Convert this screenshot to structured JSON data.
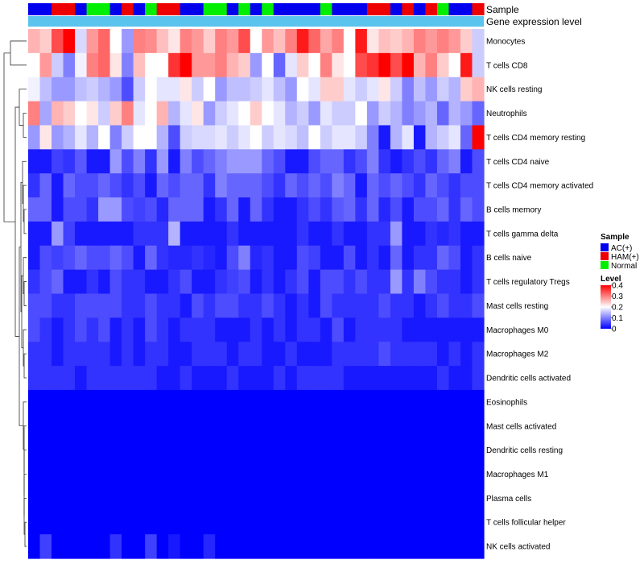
{
  "chart_data": {
    "type": "heatmap",
    "title": "",
    "annotation_tracks": [
      "Sample",
      "Gene expression level"
    ],
    "gene_expression_color": "#5bc4ee",
    "sample_groups": {
      "AC(+)": "#0000ee",
      "HAM(+)": "#ee0000",
      "Normal": "#00ee00"
    },
    "sample_annotation": [
      "AC(+)",
      "AC(+)",
      "HAM(+)",
      "HAM(+)",
      "AC(+)",
      "Normal",
      "Normal",
      "AC(+)",
      "HAM(+)",
      "AC(+)",
      "Normal",
      "HAM(+)",
      "HAM(+)",
      "AC(+)",
      "AC(+)",
      "Normal",
      "Normal",
      "AC(+)",
      "Normal",
      "AC(+)",
      "Normal",
      "AC(+)",
      "AC(+)",
      "AC(+)",
      "AC(+)",
      "Normal",
      "AC(+)",
      "AC(+)",
      "AC(+)",
      "HAM(+)",
      "HAM(+)",
      "AC(+)",
      "HAM(+)",
      "AC(+)",
      "HAM(+)",
      "Normal",
      "AC(+)",
      "AC(+)",
      "HAM(+)"
    ],
    "row_labels": [
      "Monocytes",
      "T cells CD8",
      "NK cells resting",
      "Neutrophils",
      "T cells CD4 memory resting",
      "T cells CD4 naive",
      "T cells CD4 memory activated",
      "B cells memory",
      "T cells gamma delta",
      "B cells naive",
      "T cells regulatory  Tregs",
      "Mast cells resting",
      "Macrophages M0",
      "Macrophages M2",
      "Dendritic cells activated",
      "Eosinophils",
      "Mast cells activated",
      "Dendritic cells resting",
      "Macrophages M1",
      "Plasma cells",
      "T cells follicular helper",
      "NK cells activated"
    ],
    "values": [
      [
        0.26,
        0.24,
        0.34,
        0.4,
        0.17,
        0.28,
        0.32,
        0.2,
        0.12,
        0.3,
        0.29,
        0.25,
        0.22,
        0.3,
        0.28,
        0.24,
        0.3,
        0.28,
        0.34,
        0.2,
        0.28,
        0.25,
        0.3,
        0.38,
        0.32,
        0.27,
        0.3,
        0.2,
        0.38,
        0.22,
        0.25,
        0.24,
        0.26,
        0.3,
        0.28,
        0.3,
        0.28,
        0.24,
        0.16
      ],
      [
        0.2,
        0.28,
        0.16,
        0.1,
        0.19,
        0.3,
        0.32,
        0.22,
        0.1,
        0.25,
        0.2,
        0.2,
        0.36,
        0.4,
        0.28,
        0.28,
        0.3,
        0.26,
        0.24,
        0.12,
        0.2,
        0.08,
        0.18,
        0.24,
        0.2,
        0.3,
        0.22,
        0.2,
        0.34,
        0.36,
        0.4,
        0.34,
        0.4,
        0.26,
        0.3,
        0.24,
        0.2,
        0.38,
        0.16
      ],
      [
        0.19,
        0.15,
        0.12,
        0.12,
        0.15,
        0.16,
        0.14,
        0.12,
        0.06,
        0.16,
        0.2,
        0.18,
        0.18,
        0.22,
        0.16,
        0.2,
        0.12,
        0.15,
        0.15,
        0.16,
        0.18,
        0.15,
        0.12,
        0.2,
        0.18,
        0.24,
        0.24,
        0.18,
        0.16,
        0.18,
        0.22,
        0.16,
        0.1,
        0.15,
        0.12,
        0.16,
        0.14,
        0.24,
        0.26
      ],
      [
        0.3,
        0.13,
        0.26,
        0.24,
        0.2,
        0.22,
        0.16,
        0.24,
        0.3,
        0.18,
        0.2,
        0.26,
        0.14,
        0.18,
        0.22,
        0.12,
        0.16,
        0.18,
        0.2,
        0.24,
        0.2,
        0.18,
        0.14,
        0.16,
        0.12,
        0.18,
        0.16,
        0.16,
        0.2,
        0.12,
        0.16,
        0.14,
        0.1,
        0.12,
        0.14,
        0.08,
        0.14,
        0.12,
        0.08
      ],
      [
        0.12,
        0.22,
        0.12,
        0.14,
        0.18,
        0.14,
        0.2,
        0.1,
        0.16,
        0.2,
        0.2,
        0.14,
        0.06,
        0.16,
        0.17,
        0.17,
        0.18,
        0.16,
        0.18,
        0.2,
        0.16,
        0.18,
        0.17,
        0.15,
        0.2,
        0.16,
        0.18,
        0.18,
        0.16,
        0.1,
        0.02,
        0.14,
        0.18,
        0.02,
        0.14,
        0.16,
        0.18,
        0.08,
        0.4
      ],
      [
        0.02,
        0.02,
        0.05,
        0.04,
        0.07,
        0.02,
        0.02,
        0.12,
        0.06,
        0.1,
        0.04,
        0.12,
        0.02,
        0.1,
        0.06,
        0.08,
        0.1,
        0.12,
        0.12,
        0.12,
        0.08,
        0.06,
        0.02,
        0.02,
        0.06,
        0.08,
        0.08,
        0.04,
        0.06,
        0.1,
        0.04,
        0.02,
        0.04,
        0.06,
        0.04,
        0.08,
        0.1,
        0.02,
        0.06
      ],
      [
        0.04,
        0.08,
        0.02,
        0.08,
        0.06,
        0.06,
        0.08,
        0.06,
        0.04,
        0.06,
        0.02,
        0.08,
        0.06,
        0.08,
        0.08,
        0.04,
        0.1,
        0.08,
        0.08,
        0.08,
        0.06,
        0.04,
        0.08,
        0.06,
        0.08,
        0.06,
        0.1,
        0.08,
        0.02,
        0.08,
        0.06,
        0.08,
        0.06,
        0.04,
        0.08,
        0.06,
        0.04,
        0.06,
        0.06
      ],
      [
        0.08,
        0.08,
        0.02,
        0.06,
        0.06,
        0.04,
        0.12,
        0.12,
        0.06,
        0.05,
        0.06,
        0.03,
        0.08,
        0.08,
        0.08,
        0.02,
        0.04,
        0.08,
        0.02,
        0.08,
        0.04,
        0.02,
        0.02,
        0.04,
        0.06,
        0.04,
        0.07,
        0.08,
        0.04,
        0.08,
        0.03,
        0.06,
        0.02,
        0.06,
        0.06,
        0.08,
        0.04,
        0.08,
        0.06
      ],
      [
        0.02,
        0.02,
        0.12,
        0.05,
        0.02,
        0.02,
        0.02,
        0.02,
        0.02,
        0.04,
        0.04,
        0.04,
        0.14,
        0.02,
        0.02,
        0.02,
        0.02,
        0.04,
        0.02,
        0.02,
        0.02,
        0.02,
        0.02,
        0.04,
        0.02,
        0.02,
        0.04,
        0.02,
        0.02,
        0.04,
        0.04,
        0.12,
        0.02,
        0.02,
        0.04,
        0.03,
        0.04,
        0.02,
        0.02
      ],
      [
        0.02,
        0.06,
        0.05,
        0.06,
        0.08,
        0.06,
        0.06,
        0.08,
        0.06,
        0.02,
        0.08,
        0.04,
        0.03,
        0.03,
        0.04,
        0.03,
        0.02,
        0.06,
        0.1,
        0.03,
        0.04,
        0.02,
        0.02,
        0.06,
        0.05,
        0.02,
        0.02,
        0.06,
        0.02,
        0.04,
        0.02,
        0.08,
        0.02,
        0.04,
        0.04,
        0.08,
        0.06,
        0.02,
        0.04
      ],
      [
        0.04,
        0.06,
        0.08,
        0.02,
        0.02,
        0.04,
        0.02,
        0.06,
        0.04,
        0.04,
        0.02,
        0.02,
        0.04,
        0.06,
        0.02,
        0.02,
        0.04,
        0.05,
        0.06,
        0.02,
        0.04,
        0.02,
        0.04,
        0.06,
        0.02,
        0.06,
        0.06,
        0.04,
        0.06,
        0.04,
        0.04,
        0.12,
        0.04,
        0.1,
        0.06,
        0.04,
        0.04,
        0.02,
        0.04
      ],
      [
        0.06,
        0.06,
        0.04,
        0.04,
        0.06,
        0.06,
        0.06,
        0.06,
        0.04,
        0.04,
        0.06,
        0.04,
        0.04,
        0.02,
        0.06,
        0.04,
        0.06,
        0.06,
        0.04,
        0.04,
        0.06,
        0.04,
        0.02,
        0.04,
        0.02,
        0.06,
        0.04,
        0.04,
        0.04,
        0.04,
        0.06,
        0.04,
        0.04,
        0.02,
        0.04,
        0.06,
        0.04,
        0.04,
        0.06
      ],
      [
        0.06,
        0.04,
        0.02,
        0.04,
        0.06,
        0.04,
        0.06,
        0.02,
        0.04,
        0.02,
        0.06,
        0.04,
        0.02,
        0.04,
        0.04,
        0.04,
        0.02,
        0.02,
        0.02,
        0.04,
        0.02,
        0.04,
        0.02,
        0.04,
        0.04,
        0.02,
        0.06,
        0.02,
        0.04,
        0.04,
        0.04,
        0.04,
        0.02,
        0.02,
        0.02,
        0.02,
        0.02,
        0.02,
        0.02
      ],
      [
        0.04,
        0.04,
        0.02,
        0.04,
        0.04,
        0.04,
        0.04,
        0.02,
        0.04,
        0.02,
        0.04,
        0.04,
        0.02,
        0.02,
        0.04,
        0.04,
        0.04,
        0.02,
        0.04,
        0.04,
        0.02,
        0.02,
        0.04,
        0.02,
        0.02,
        0.02,
        0.04,
        0.04,
        0.04,
        0.04,
        0.06,
        0.04,
        0.04,
        0.04,
        0.04,
        0.02,
        0.04,
        0.02,
        0.04
      ],
      [
        0.04,
        0.04,
        0.04,
        0.04,
        0.02,
        0.04,
        0.04,
        0.04,
        0.04,
        0.04,
        0.04,
        0.02,
        0.02,
        0.04,
        0.02,
        0.02,
        0.02,
        0.04,
        0.02,
        0.02,
        0.02,
        0.04,
        0.02,
        0.04,
        0.04,
        0.04,
        0.04,
        0.02,
        0.02,
        0.02,
        0.02,
        0.02,
        0.02,
        0.02,
        0.02,
        0.04,
        0.02,
        0.02,
        0.04
      ],
      [
        0.0,
        0.0,
        0.0,
        0.0,
        0.0,
        0.0,
        0.0,
        0.0,
        0.0,
        0.0,
        0.0,
        0.0,
        0.0,
        0.0,
        0.0,
        0.0,
        0.0,
        0.0,
        0.0,
        0.0,
        0.0,
        0.0,
        0.0,
        0.0,
        0.0,
        0.0,
        0.0,
        0.0,
        0.0,
        0.0,
        0.0,
        0.0,
        0.0,
        0.0,
        0.0,
        0.0,
        0.0,
        0.0,
        0.0
      ],
      [
        0.0,
        0.0,
        0.0,
        0.0,
        0.0,
        0.0,
        0.0,
        0.0,
        0.0,
        0.0,
        0.0,
        0.0,
        0.0,
        0.0,
        0.0,
        0.0,
        0.0,
        0.0,
        0.0,
        0.0,
        0.0,
        0.0,
        0.0,
        0.0,
        0.0,
        0.0,
        0.0,
        0.0,
        0.0,
        0.0,
        0.0,
        0.0,
        0.0,
        0.0,
        0.0,
        0.0,
        0.0,
        0.0,
        0.0
      ],
      [
        0.0,
        0.0,
        0.0,
        0.0,
        0.0,
        0.0,
        0.0,
        0.0,
        0.0,
        0.0,
        0.0,
        0.0,
        0.0,
        0.0,
        0.0,
        0.0,
        0.0,
        0.0,
        0.0,
        0.0,
        0.0,
        0.0,
        0.0,
        0.0,
        0.0,
        0.0,
        0.0,
        0.0,
        0.0,
        0.0,
        0.0,
        0.0,
        0.0,
        0.0,
        0.0,
        0.0,
        0.0,
        0.0,
        0.0
      ],
      [
        0.0,
        0.0,
        0.0,
        0.0,
        0.0,
        0.0,
        0.0,
        0.0,
        0.0,
        0.0,
        0.0,
        0.0,
        0.0,
        0.0,
        0.0,
        0.0,
        0.0,
        0.0,
        0.0,
        0.0,
        0.0,
        0.0,
        0.0,
        0.0,
        0.0,
        0.0,
        0.0,
        0.0,
        0.0,
        0.0,
        0.0,
        0.0,
        0.0,
        0.0,
        0.0,
        0.0,
        0.0,
        0.0,
        0.0
      ],
      [
        0.0,
        0.0,
        0.0,
        0.0,
        0.0,
        0.0,
        0.0,
        0.0,
        0.0,
        0.0,
        0.0,
        0.0,
        0.0,
        0.0,
        0.0,
        0.0,
        0.0,
        0.0,
        0.0,
        0.0,
        0.0,
        0.0,
        0.0,
        0.0,
        0.0,
        0.0,
        0.0,
        0.0,
        0.0,
        0.0,
        0.0,
        0.0,
        0.0,
        0.0,
        0.0,
        0.0,
        0.0,
        0.0,
        0.0
      ],
      [
        0.0,
        0.0,
        0.0,
        0.0,
        0.0,
        0.0,
        0.0,
        0.0,
        0.0,
        0.0,
        0.0,
        0.0,
        0.0,
        0.0,
        0.0,
        0.0,
        0.0,
        0.0,
        0.0,
        0.0,
        0.0,
        0.0,
        0.0,
        0.0,
        0.0,
        0.0,
        0.0,
        0.0,
        0.0,
        0.0,
        0.0,
        0.0,
        0.0,
        0.0,
        0.0,
        0.0,
        0.0,
        0.0,
        0.0
      ],
      [
        0.0,
        0.05,
        0.0,
        0.0,
        0.0,
        0.0,
        0.0,
        0.04,
        0.0,
        0.0,
        0.05,
        0.0,
        0.02,
        0.0,
        0.0,
        0.03,
        0.0,
        0.0,
        0.0,
        0.0,
        0.0,
        0.0,
        0.0,
        0.0,
        0.0,
        0.0,
        0.0,
        0.0,
        0.0,
        0.0,
        0.0,
        0.0,
        0.0,
        0.0,
        0.0,
        0.0,
        0.0,
        0.0,
        0.0
      ]
    ],
    "legend": {
      "sample_title": "Sample",
      "sample_items": [
        "AC(+)",
        "HAM(+)",
        "Normal"
      ],
      "level_title": "Level",
      "level_ticks": [
        "0.4",
        "0.3",
        "0.2",
        "0.1",
        "0"
      ],
      "level_range": [
        0,
        0.4
      ],
      "colors": {
        "low": "#0000ff",
        "mid": "#ffffff",
        "high": "#ff0000"
      }
    }
  }
}
